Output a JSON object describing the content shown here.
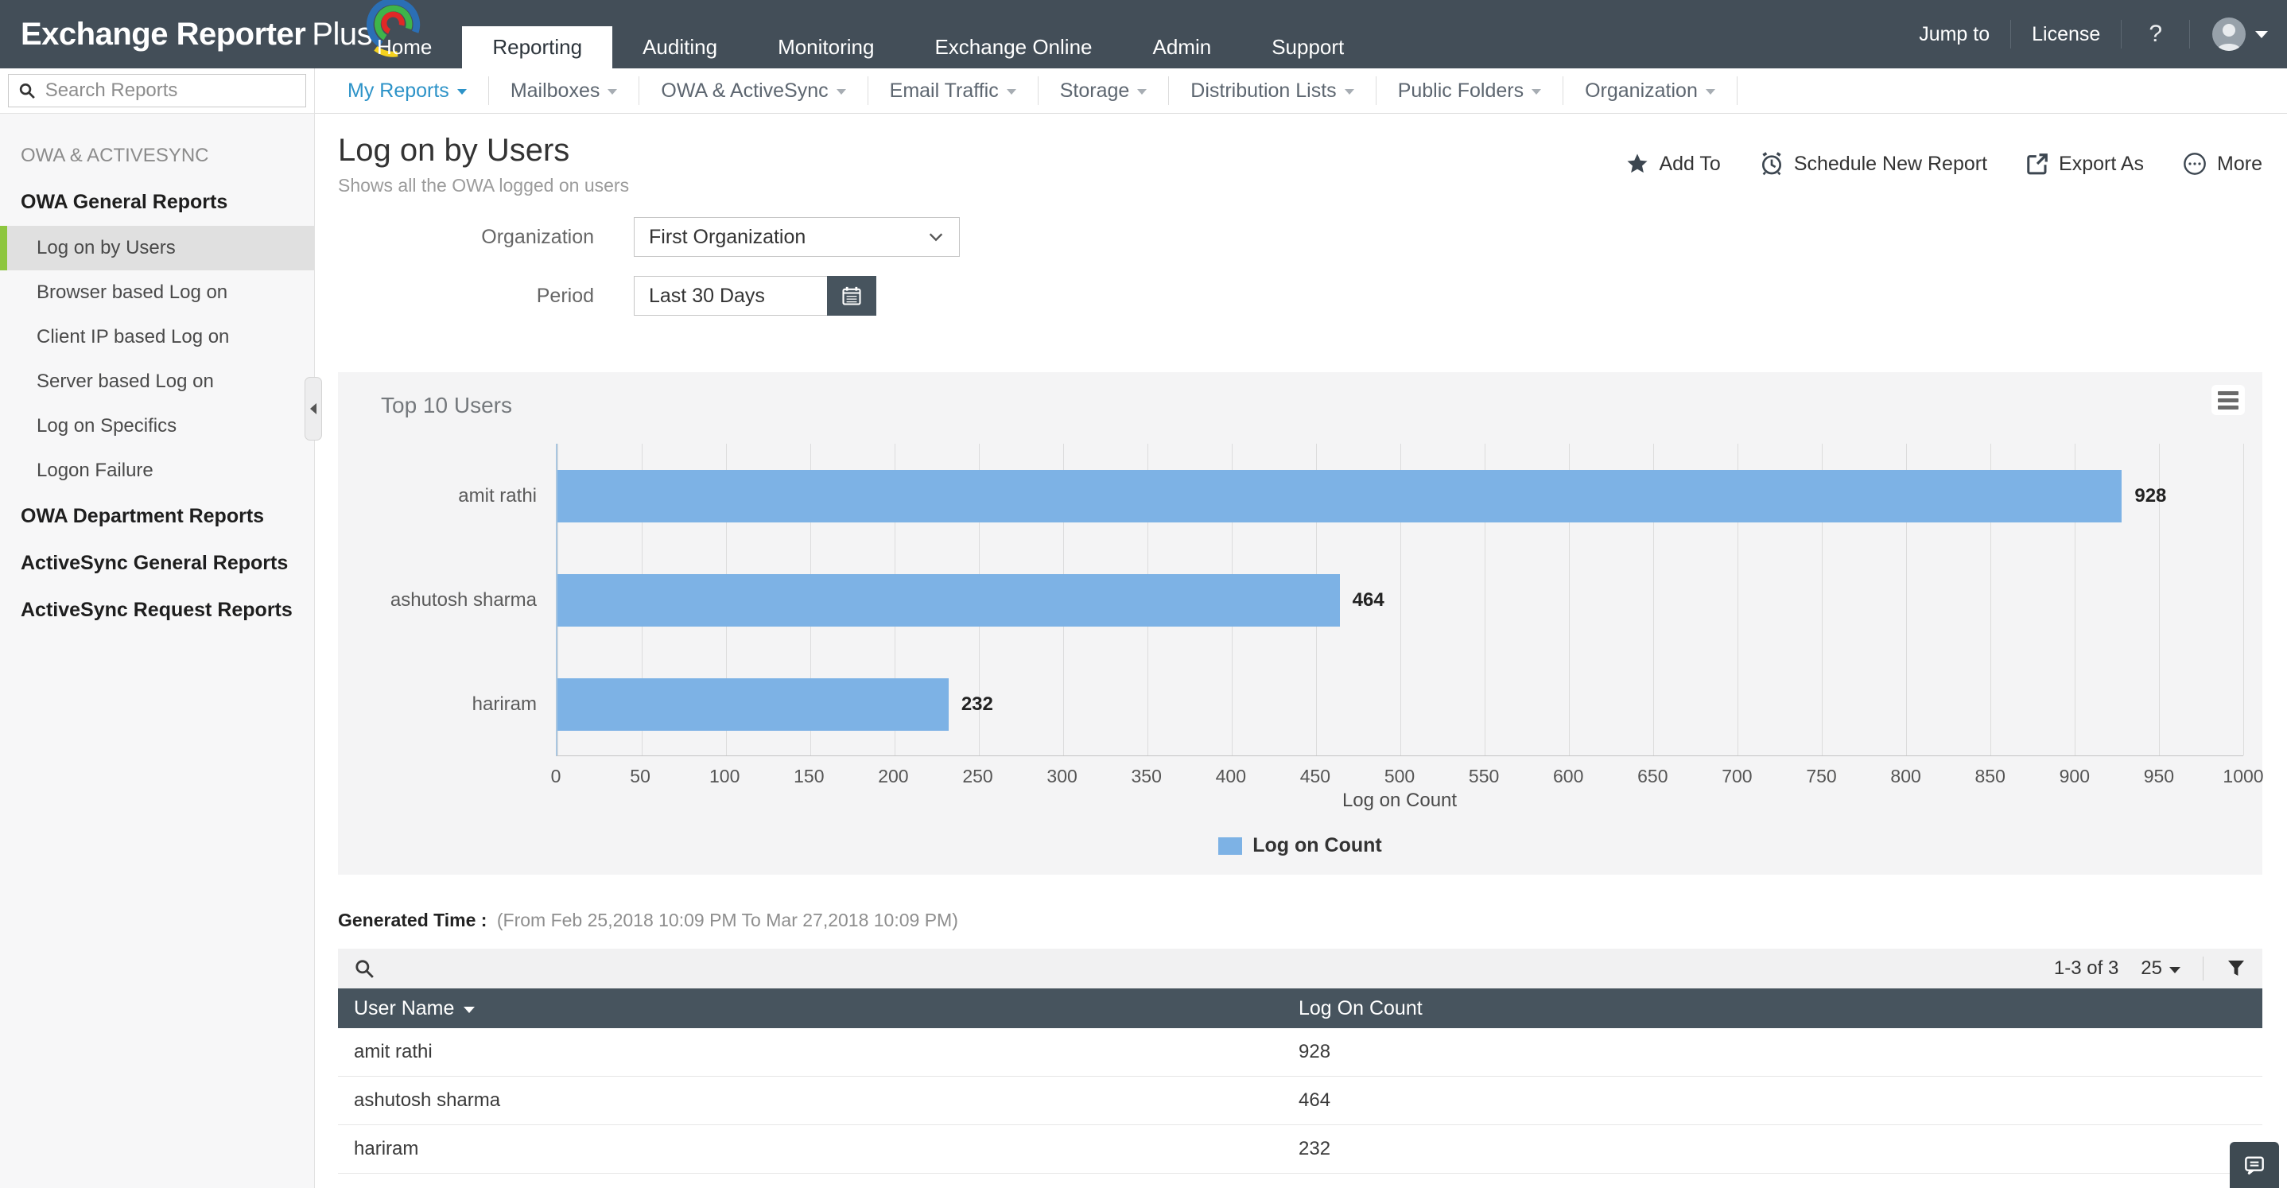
{
  "topbar": {
    "logo": {
      "name": "Exchange Reporter",
      "suffix": "Plus"
    },
    "tabs": [
      {
        "label": "Home",
        "class": ""
      },
      {
        "label": "Reporting",
        "class": "active"
      },
      {
        "label": "Auditing",
        "class": ""
      },
      {
        "label": "Monitoring",
        "class": ""
      },
      {
        "label": "Exchange Online",
        "class": ""
      },
      {
        "label": "Admin",
        "class": ""
      },
      {
        "label": "Support",
        "class": ""
      }
    ],
    "jump_to": "Jump to",
    "license": "License",
    "help": "?"
  },
  "menubar": {
    "items": [
      {
        "label": "My Reports",
        "class": "active"
      },
      {
        "label": "Mailboxes",
        "class": ""
      },
      {
        "label": "OWA & ActiveSync",
        "class": ""
      },
      {
        "label": "Email Traffic",
        "class": ""
      },
      {
        "label": "Storage",
        "class": ""
      },
      {
        "label": "Distribution Lists",
        "class": ""
      },
      {
        "label": "Public Folders",
        "class": ""
      },
      {
        "label": "Organization",
        "class": ""
      }
    ]
  },
  "sidebar": {
    "search": {
      "placeholder": "Search Reports"
    },
    "entries": [
      {
        "label": "OWA & ACTIVESYNC",
        "class": "upper"
      },
      {
        "label": "OWA General Reports",
        "class": "section"
      },
      {
        "label": "Log on by Users",
        "class": "item selected"
      },
      {
        "label": "Browser based Log on",
        "class": "item"
      },
      {
        "label": "Client IP based Log on",
        "class": "item"
      },
      {
        "label": "Server based Log on",
        "class": "item"
      },
      {
        "label": "Log on Specifics",
        "class": "item"
      },
      {
        "label": "Logon Failure",
        "class": "item"
      },
      {
        "label": "OWA Department Reports",
        "class": "section"
      },
      {
        "label": "ActiveSync General Reports",
        "class": "section"
      },
      {
        "label": "ActiveSync Request Reports",
        "class": "section"
      }
    ]
  },
  "report": {
    "title": "Log on by Users",
    "subtitle": "Shows all the OWA logged on users",
    "actions": {
      "add_to": "Add To",
      "schedule": "Schedule New Report",
      "export_as": "Export As",
      "more": "More"
    },
    "filters": {
      "organization_label": "Organization",
      "organization_value": "First Organization",
      "period_label": "Period",
      "period_value": "Last 30 Days"
    }
  },
  "chart_data": {
    "type": "bar",
    "orientation": "horizontal",
    "title": "Top 10 Users",
    "categories": [
      "amit rathi",
      "ashutosh sharma",
      "hariram"
    ],
    "values": [
      928,
      464,
      232
    ],
    "data_labels": [
      "928",
      "464",
      "232"
    ],
    "series_name": "Log on Count",
    "xlabel": "Log on Count",
    "xlim": [
      0,
      1000
    ],
    "xticks": [
      0,
      50,
      100,
      150,
      200,
      250,
      300,
      350,
      400,
      450,
      500,
      550,
      600,
      650,
      700,
      750,
      800,
      850,
      900,
      950,
      1000
    ],
    "grid": true,
    "legend_position": "bottom-center",
    "bar_color": "#7db2e5"
  },
  "generated": {
    "label": "Generated Time :",
    "range": "(From Feb 25,2018 10:09 PM To Mar 27,2018 10:09 PM)"
  },
  "table": {
    "range_text": "1-3 of 3",
    "page_size": "25",
    "columns": {
      "user": "User Name",
      "count": "Log On Count"
    },
    "rows": [
      {
        "user": "amit rathi",
        "count": "928"
      },
      {
        "user": "ashutosh sharma",
        "count": "464"
      },
      {
        "user": "hariram",
        "count": "232"
      }
    ]
  }
}
